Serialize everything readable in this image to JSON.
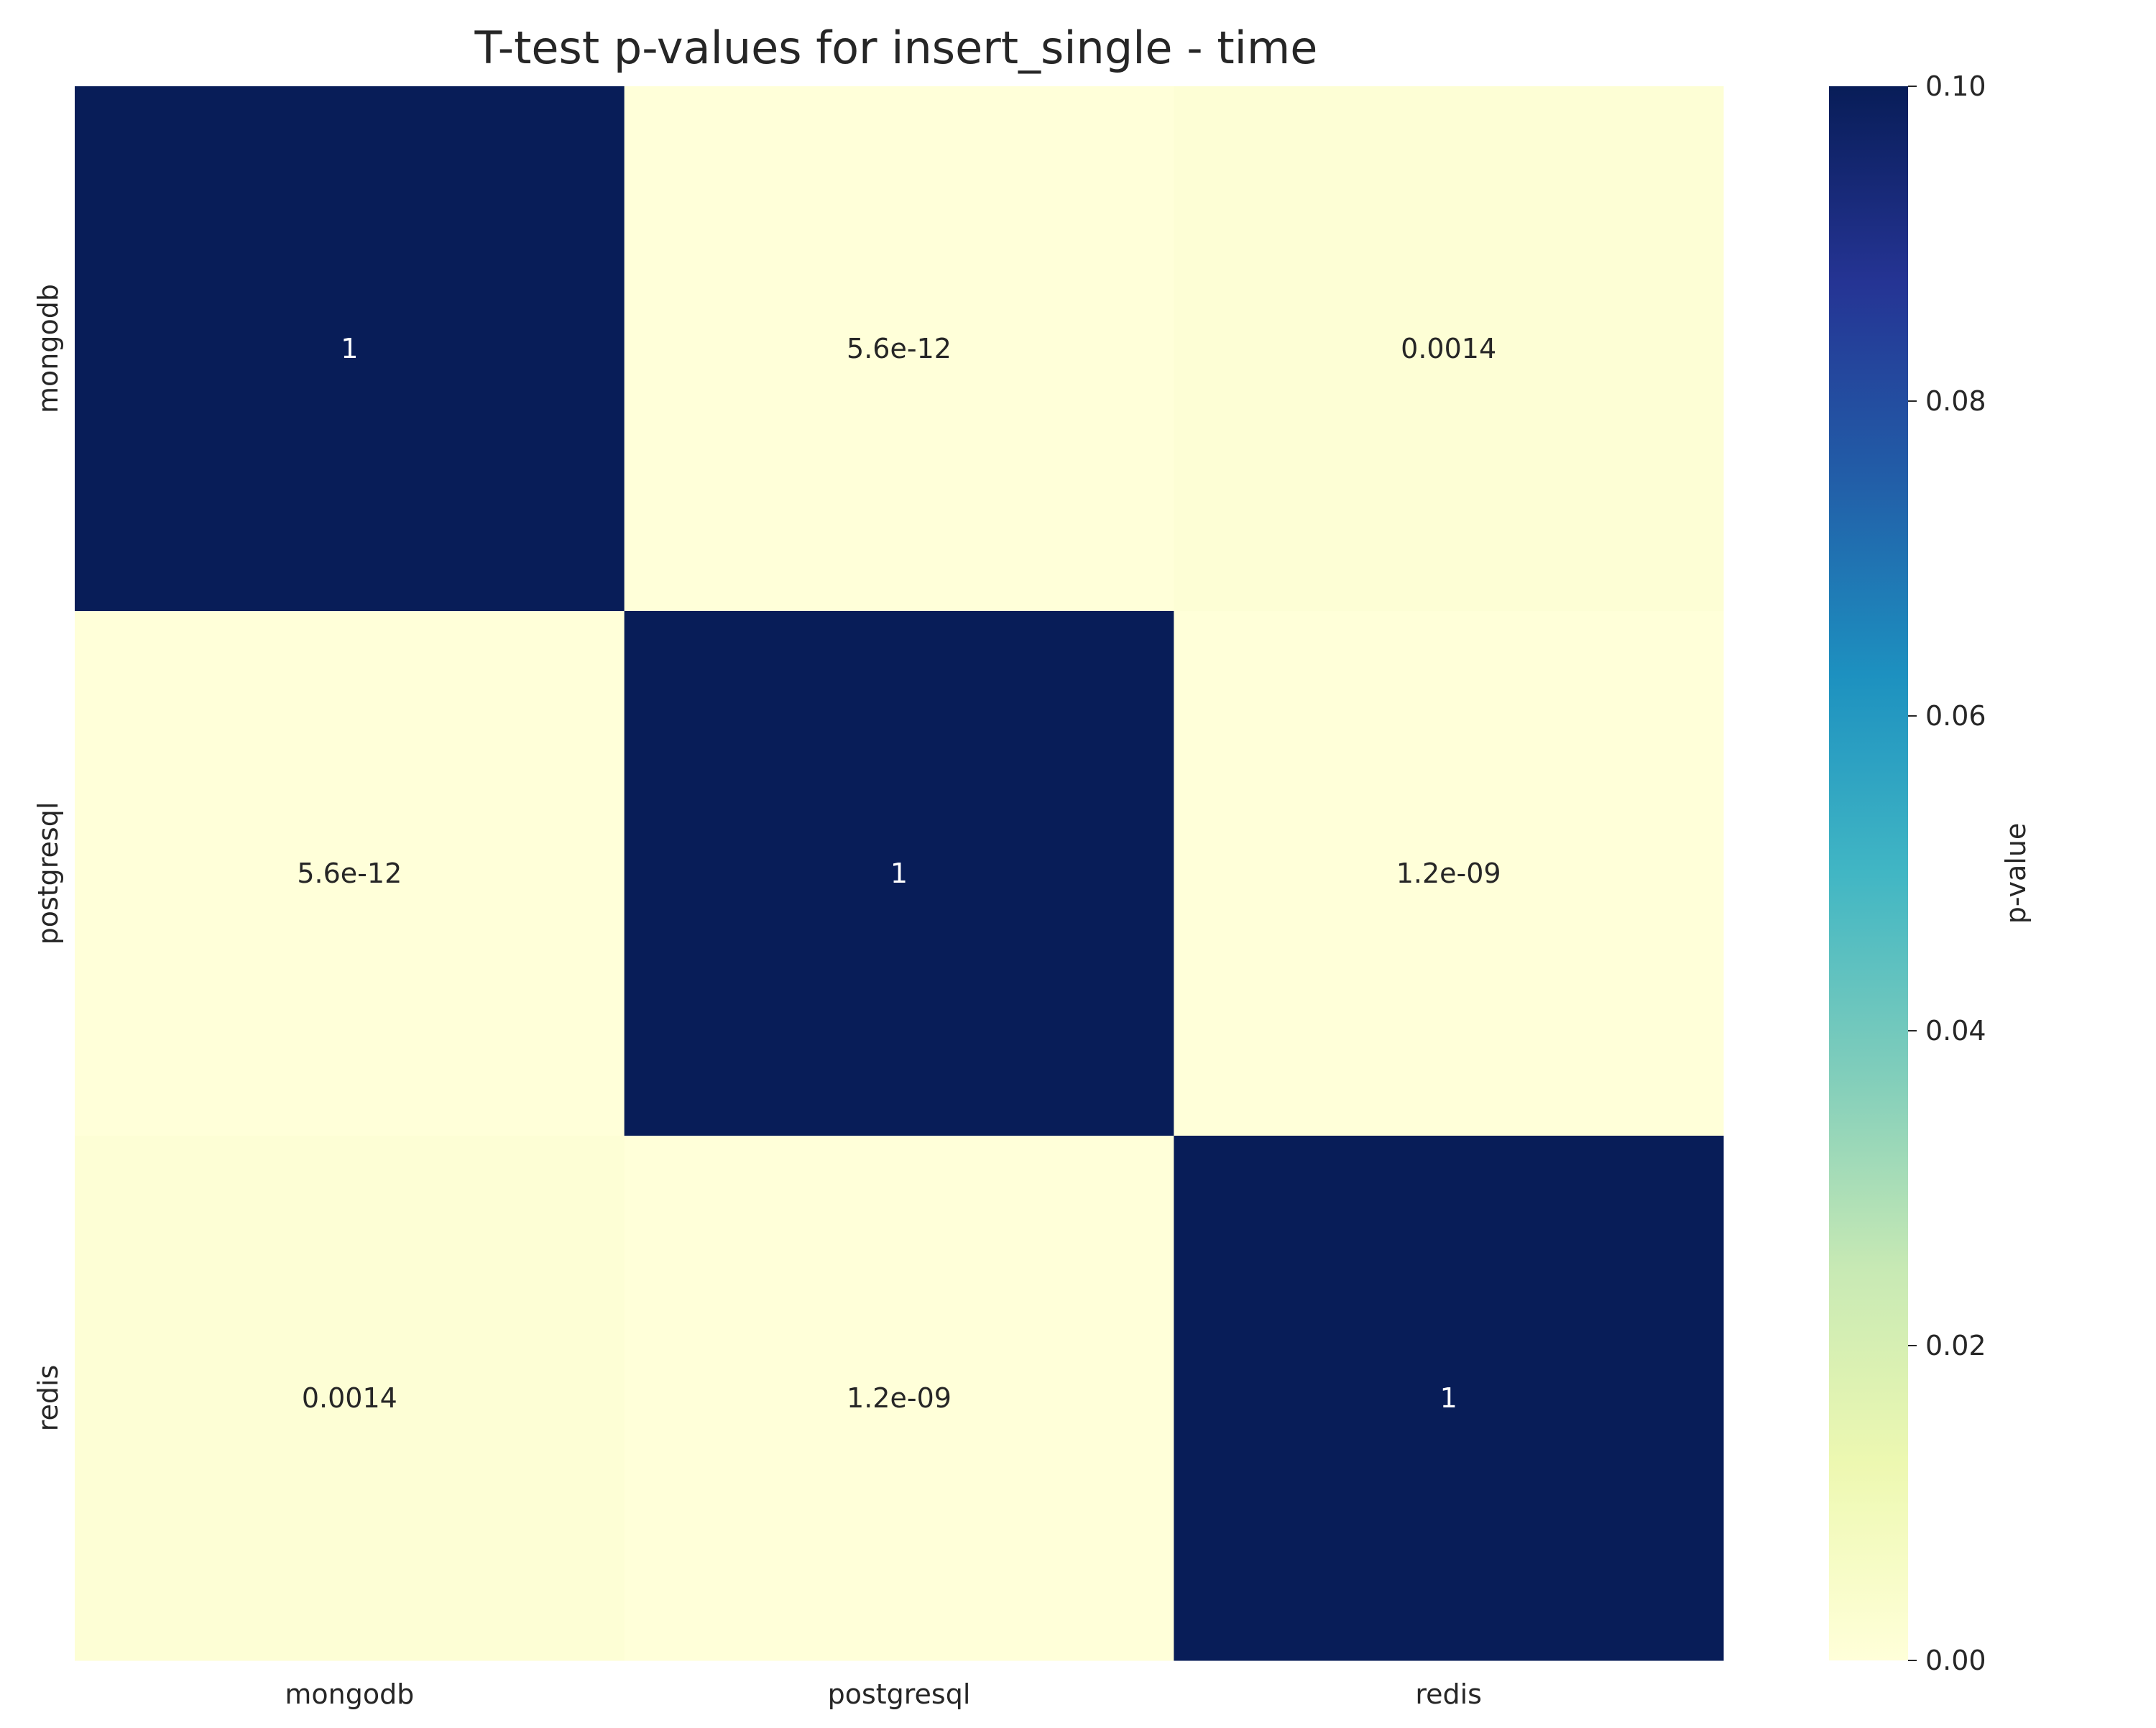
{
  "chart_data": {
    "type": "heatmap",
    "title": "T-test p-values for insert_single - time",
    "row_labels": [
      "mongodb",
      "postgresql",
      "redis"
    ],
    "col_labels": [
      "mongodb",
      "postgresql",
      "redis"
    ],
    "values": [
      [
        1,
        5.6e-12,
        0.0014
      ],
      [
        5.6e-12,
        1,
        1.2e-09
      ],
      [
        0.0014,
        1.2e-09,
        1
      ]
    ],
    "annotations": [
      [
        "1",
        "5.6e-12",
        "0.0014"
      ],
      [
        "5.6e-12",
        "1",
        "1.2e-09"
      ],
      [
        "0.0014",
        "1.2e-09",
        "1"
      ]
    ],
    "colormap": "YlGnBu",
    "vmin": 0,
    "vmax": 0.1,
    "colorbar": {
      "label": "p-value",
      "ticks": [
        0.0,
        0.02,
        0.04,
        0.06,
        0.08,
        0.1
      ],
      "tick_labels": [
        "0.00",
        "0.02",
        "0.04",
        "0.06",
        "0.08",
        "0.10"
      ],
      "position": "right"
    },
    "grid": false
  }
}
